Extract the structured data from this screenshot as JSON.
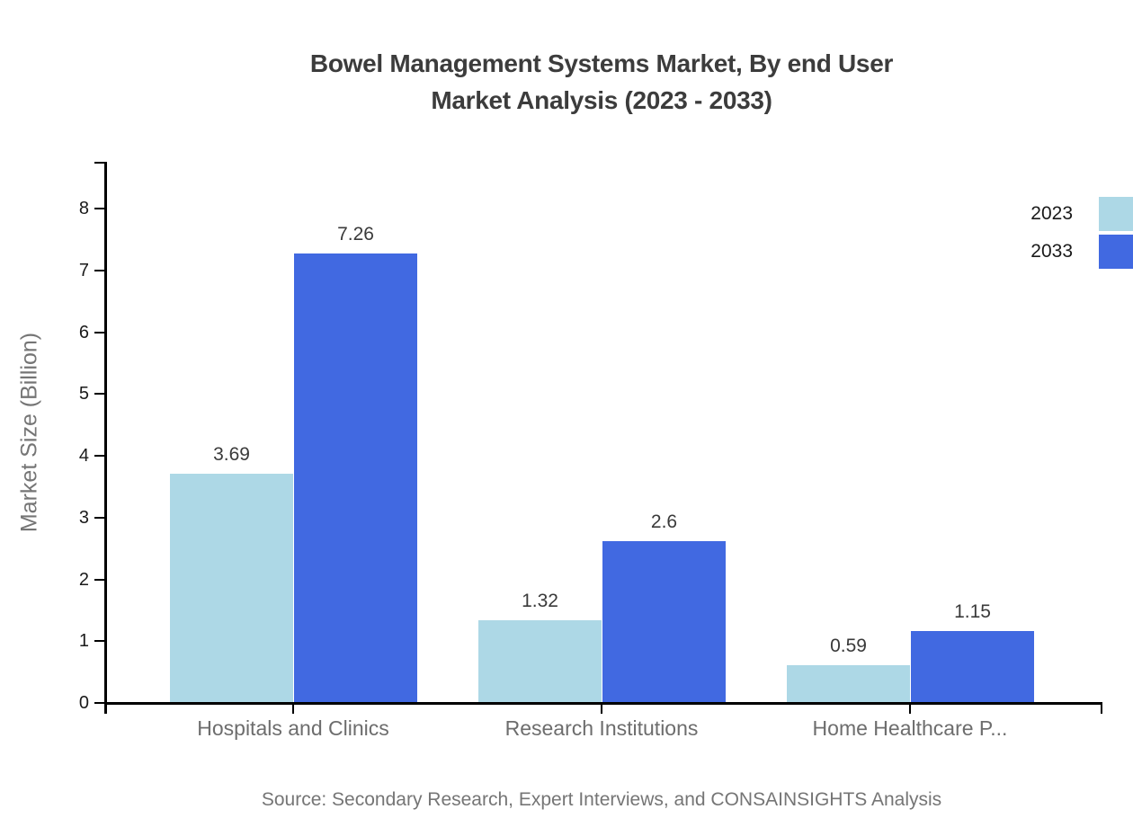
{
  "title": {
    "line1": "Bowel Management Systems Market, By end User",
    "line2": "Market Analysis (2023 - 2033)"
  },
  "source": "Source: Secondary Research, Expert Interviews, and CONSAINSIGHTS Analysis",
  "legend": {
    "items": [
      {
        "label": "2023",
        "color": "#ADD8E6"
      },
      {
        "label": "2033",
        "color": "#4169E1"
      }
    ]
  },
  "colors": {
    "series_2023": "#ADD8E6",
    "series_2033": "#4169E1",
    "axis": "#000000",
    "title_text": "#3c3c3c",
    "value_label_text": "#3a3a3a",
    "category_text": "#6d6d6d",
    "tick_text": "#1a1a1a",
    "muted_text": "#757575"
  },
  "chart_data": {
    "type": "bar",
    "title": "Bowel Management Systems Market, By end User Market Analysis (2023 - 2033)",
    "categories": [
      "Hospitals and Clinics",
      "Research Institutions",
      "Home Healthcare P..."
    ],
    "series": [
      {
        "name": "2023",
        "color": "#ADD8E6",
        "values": [
          3.69,
          1.32,
          0.59
        ],
        "labels": [
          "3.69",
          "1.32",
          "0.59"
        ]
      },
      {
        "name": "2033",
        "color": "#4169E1",
        "values": [
          7.26,
          2.6,
          1.15
        ],
        "labels": [
          "7.26",
          "2.6",
          "1.15"
        ]
      }
    ],
    "xlabel": "",
    "ylabel": "Market Size (Billion)",
    "ylim": [
      0,
      8
    ],
    "yticks": [
      0,
      1,
      2,
      3,
      4,
      5,
      6,
      7,
      8
    ],
    "grid": false,
    "legend_position": "top-right",
    "data_labels_shown": true
  }
}
